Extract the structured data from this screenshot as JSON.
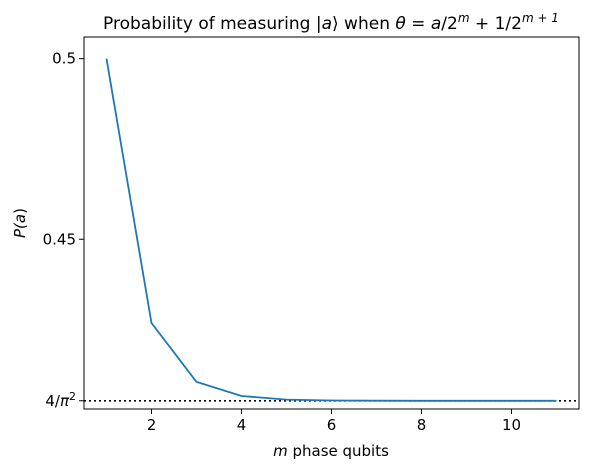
{
  "chart_data": {
    "type": "line",
    "title": {
      "prefix": "Probability of measuring |",
      "var_a": "a",
      "ket": "⟩ when ",
      "theta": "θ",
      "eq": " = ",
      "a2": "a",
      "slash_two": "/2",
      "sup_m": "m",
      "plus_one_over_two": " + 1/2",
      "sup_m1": "m + 1"
    },
    "xlabel": {
      "var": "m",
      "text": " phase qubits"
    },
    "ylabel": {
      "pre": "P(",
      "var": "a",
      "post": ")"
    },
    "xlim": [
      0.5,
      11.5
    ],
    "ylim": [
      0.403,
      0.506
    ],
    "x_ticks": [
      2,
      4,
      6,
      8,
      10
    ],
    "y_ticks": [
      {
        "value": 0.5,
        "label": "0.5"
      },
      {
        "value": 0.45,
        "label": "0.45"
      },
      {
        "value": 0.40528,
        "label_pre": "4/",
        "label_pi": "π",
        "label_sup": "2"
      }
    ],
    "reference_line": {
      "value": 0.40528,
      "style": "dotted",
      "color": "#000000"
    },
    "series": [
      {
        "color": "#1f77b4",
        "x": [
          1,
          2,
          3,
          4,
          5,
          6,
          7,
          8,
          9,
          10,
          11
        ],
        "y": [
          0.5,
          0.4268,
          0.4105,
          0.4066,
          0.4056,
          0.40536,
          0.4053,
          0.40528,
          0.40528,
          0.40528,
          0.40528
        ]
      }
    ],
    "grid": false
  }
}
